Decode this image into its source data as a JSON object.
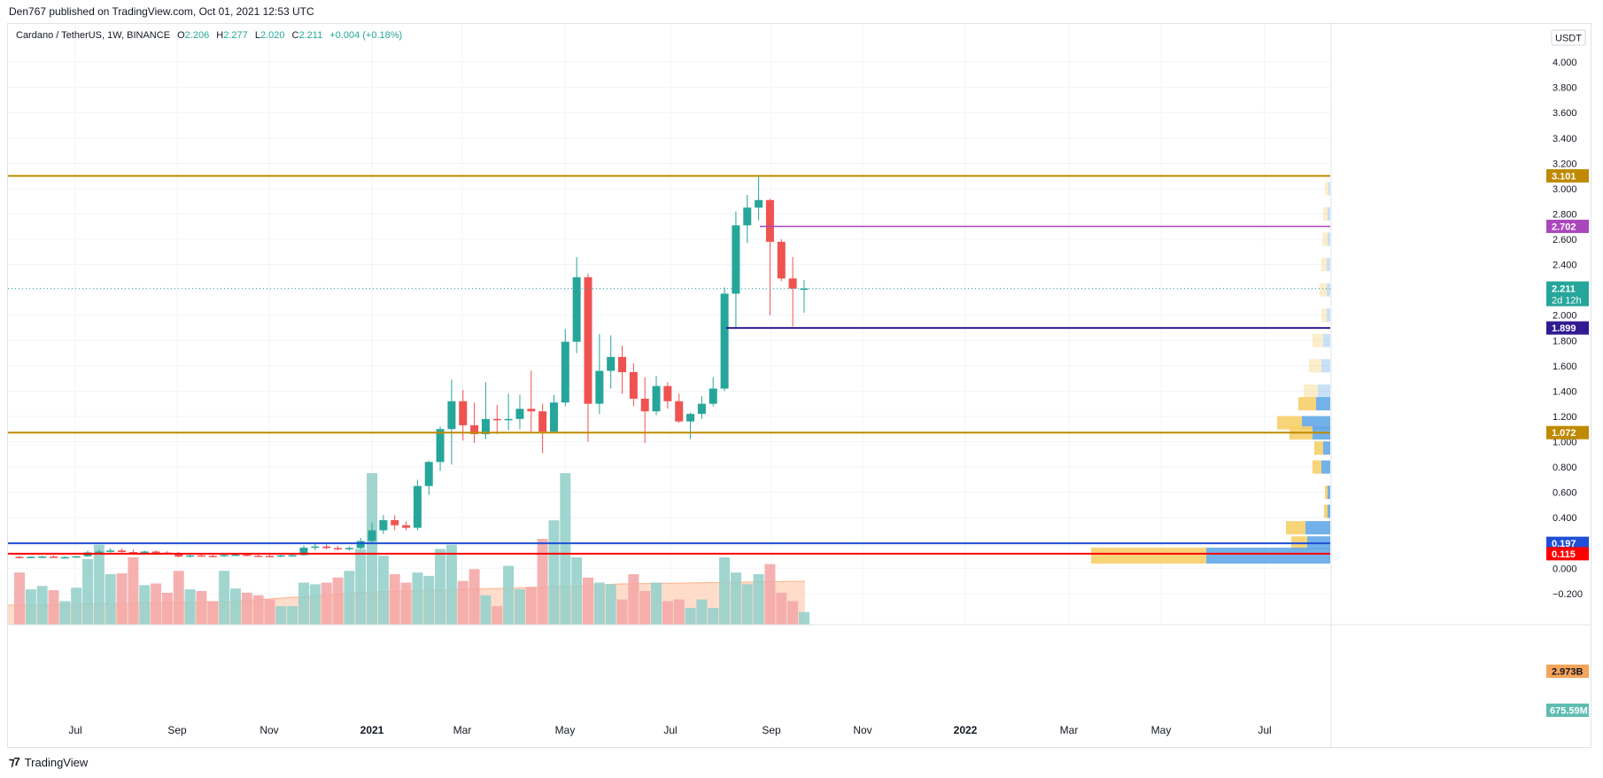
{
  "header": {
    "publisher_text": "Den767 published on TradingView.com, Oct 01, 2021 12:53 UTC"
  },
  "legend": {
    "symbol": "Cardano / TetherUS, 1W, BINANCE",
    "o_label": "O",
    "o_value": "2.206",
    "h_label": "H",
    "h_value": "2.277",
    "l_label": "L",
    "l_value": "2.020",
    "c_label": "C",
    "c_value": "2.211",
    "change": "+0.004 (+0.18%)"
  },
  "axis": {
    "currency_button": "USDT",
    "price_ticks": [
      "4.000",
      "3.800",
      "3.600",
      "3.400",
      "3.200",
      "3.000",
      "2.800",
      "2.600",
      "2.400",
      "2.200",
      "2.000",
      "1.800",
      "1.600",
      "1.400",
      "1.200",
      "1.000",
      "0.800",
      "0.600",
      "0.400",
      "0.200",
      "0.000",
      "−0.200"
    ],
    "time_labels": [
      {
        "label": "Jul",
        "bold": false
      },
      {
        "label": "Sep",
        "bold": false
      },
      {
        "label": "Nov",
        "bold": false
      },
      {
        "label": "2021",
        "bold": true
      },
      {
        "label": "Mar",
        "bold": false
      },
      {
        "label": "May",
        "bold": false
      },
      {
        "label": "Jul",
        "bold": false
      },
      {
        "label": "Sep",
        "bold": false
      },
      {
        "label": "Nov",
        "bold": false
      },
      {
        "label": "2022",
        "bold": true
      },
      {
        "label": "Mar",
        "bold": false
      },
      {
        "label": "May",
        "bold": false
      },
      {
        "label": "Jul",
        "bold": false
      }
    ]
  },
  "price_labels": {
    "res_high": "3.101",
    "res_mid": "2.702",
    "current_price": "2.211",
    "countdown": "2d 12h",
    "support_mid": "1.899",
    "support_low": "1.072",
    "vp_poc": "0.197",
    "vp_low": "0.115",
    "volume_ma": "2.973B",
    "volume_cur": "675.59M"
  },
  "colors": {
    "up": "#26a69a",
    "down": "#ef5350",
    "level_orange": "#bf8a00",
    "level_purple_light": "#ab47bc",
    "level_purple_dark": "#311b92",
    "level_blue": "#1e4fd6",
    "level_red": "#ff0000",
    "vol_up": "#97d0cb",
    "vol_down": "#f4a9a7",
    "vol_ma_fill": "#ffd2b8",
    "vp_yellow": "#f7cf6a",
    "vp_blue": "#64a9e8"
  },
  "chart_data": {
    "type": "candlestick",
    "title": "Cardano / TetherUS, 1W, BINANCE",
    "ylim": [
      -0.35,
      4.2
    ],
    "horizontal_levels": [
      3.101,
      2.702,
      1.899,
      1.072,
      0.197,
      0.115
    ],
    "candles": [
      {
        "x": 0,
        "o": 0.09,
        "h": 0.098,
        "l": 0.08,
        "c": 0.085
      },
      {
        "x": 1,
        "o": 0.085,
        "h": 0.094,
        "l": 0.079,
        "c": 0.09
      },
      {
        "x": 2,
        "o": 0.09,
        "h": 0.1,
        "l": 0.082,
        "c": 0.092
      },
      {
        "x": 3,
        "o": 0.092,
        "h": 0.102,
        "l": 0.085,
        "c": 0.086
      },
      {
        "x": 4,
        "o": 0.086,
        "h": 0.095,
        "l": 0.08,
        "c": 0.088
      },
      {
        "x": 5,
        "o": 0.088,
        "h": 0.097,
        "l": 0.082,
        "c": 0.095
      },
      {
        "x": 6,
        "o": 0.095,
        "h": 0.14,
        "l": 0.09,
        "c": 0.125
      },
      {
        "x": 7,
        "o": 0.125,
        "h": 0.15,
        "l": 0.115,
        "c": 0.132
      },
      {
        "x": 8,
        "o": 0.132,
        "h": 0.158,
        "l": 0.122,
        "c": 0.14
      },
      {
        "x": 9,
        "o": 0.14,
        "h": 0.156,
        "l": 0.12,
        "c": 0.128
      },
      {
        "x": 10,
        "o": 0.128,
        "h": 0.148,
        "l": 0.112,
        "c": 0.122
      },
      {
        "x": 11,
        "o": 0.122,
        "h": 0.14,
        "l": 0.112,
        "c": 0.132
      },
      {
        "x": 12,
        "o": 0.132,
        "h": 0.142,
        "l": 0.118,
        "c": 0.124
      },
      {
        "x": 13,
        "o": 0.124,
        "h": 0.135,
        "l": 0.11,
        "c": 0.118
      },
      {
        "x": 14,
        "o": 0.118,
        "h": 0.128,
        "l": 0.086,
        "c": 0.092
      },
      {
        "x": 15,
        "o": 0.092,
        "h": 0.106,
        "l": 0.086,
        "c": 0.102
      },
      {
        "x": 16,
        "o": 0.102,
        "h": 0.112,
        "l": 0.094,
        "c": 0.098
      },
      {
        "x": 17,
        "o": 0.098,
        "h": 0.108,
        "l": 0.09,
        "c": 0.096
      },
      {
        "x": 18,
        "o": 0.096,
        "h": 0.112,
        "l": 0.09,
        "c": 0.105
      },
      {
        "x": 19,
        "o": 0.105,
        "h": 0.118,
        "l": 0.096,
        "c": 0.108
      },
      {
        "x": 20,
        "o": 0.108,
        "h": 0.116,
        "l": 0.094,
        "c": 0.1
      },
      {
        "x": 21,
        "o": 0.1,
        "h": 0.11,
        "l": 0.09,
        "c": 0.098
      },
      {
        "x": 22,
        "o": 0.098,
        "h": 0.108,
        "l": 0.086,
        "c": 0.094
      },
      {
        "x": 23,
        "o": 0.094,
        "h": 0.108,
        "l": 0.088,
        "c": 0.102
      },
      {
        "x": 24,
        "o": 0.102,
        "h": 0.12,
        "l": 0.094,
        "c": 0.104
      },
      {
        "x": 25,
        "o": 0.104,
        "h": 0.18,
        "l": 0.1,
        "c": 0.162
      },
      {
        "x": 26,
        "o": 0.162,
        "h": 0.195,
        "l": 0.142,
        "c": 0.172
      },
      {
        "x": 27,
        "o": 0.172,
        "h": 0.19,
        "l": 0.148,
        "c": 0.16
      },
      {
        "x": 28,
        "o": 0.16,
        "h": 0.176,
        "l": 0.14,
        "c": 0.152
      },
      {
        "x": 29,
        "o": 0.152,
        "h": 0.172,
        "l": 0.14,
        "c": 0.16
      },
      {
        "x": 30,
        "o": 0.16,
        "h": 0.24,
        "l": 0.15,
        "c": 0.215
      },
      {
        "x": 31,
        "o": 0.215,
        "h": 0.36,
        "l": 0.2,
        "c": 0.3
      },
      {
        "x": 32,
        "o": 0.3,
        "h": 0.42,
        "l": 0.27,
        "c": 0.38
      },
      {
        "x": 33,
        "o": 0.38,
        "h": 0.42,
        "l": 0.3,
        "c": 0.34
      },
      {
        "x": 34,
        "o": 0.34,
        "h": 0.37,
        "l": 0.3,
        "c": 0.32
      },
      {
        "x": 35,
        "o": 0.32,
        "h": 0.7,
        "l": 0.3,
        "c": 0.65
      },
      {
        "x": 36,
        "o": 0.65,
        "h": 0.85,
        "l": 0.58,
        "c": 0.84
      },
      {
        "x": 37,
        "o": 0.84,
        "h": 1.12,
        "l": 0.77,
        "c": 1.1
      },
      {
        "x": 38,
        "o": 1.1,
        "h": 1.49,
        "l": 0.82,
        "c": 1.32
      },
      {
        "x": 39,
        "o": 1.32,
        "h": 1.41,
        "l": 1.01,
        "c": 1.13
      },
      {
        "x": 40,
        "o": 1.13,
        "h": 1.31,
        "l": 0.99,
        "c": 1.06
      },
      {
        "x": 41,
        "o": 1.06,
        "h": 1.47,
        "l": 1.02,
        "c": 1.18
      },
      {
        "x": 42,
        "o": 1.18,
        "h": 1.29,
        "l": 1.06,
        "c": 1.17
      },
      {
        "x": 43,
        "o": 1.17,
        "h": 1.38,
        "l": 1.09,
        "c": 1.18
      },
      {
        "x": 44,
        "o": 1.18,
        "h": 1.37,
        "l": 1.1,
        "c": 1.26
      },
      {
        "x": 45,
        "o": 1.26,
        "h": 1.56,
        "l": 1.08,
        "c": 1.24
      },
      {
        "x": 46,
        "o": 1.24,
        "h": 1.3,
        "l": 0.91,
        "c": 1.08
      },
      {
        "x": 47,
        "o": 1.08,
        "h": 1.37,
        "l": 1.07,
        "c": 1.31
      },
      {
        "x": 48,
        "o": 1.31,
        "h": 1.89,
        "l": 1.28,
        "c": 1.79
      },
      {
        "x": 49,
        "o": 1.79,
        "h": 2.46,
        "l": 1.7,
        "c": 2.3
      },
      {
        "x": 50,
        "o": 2.3,
        "h": 2.33,
        "l": 1.0,
        "c": 1.3
      },
      {
        "x": 51,
        "o": 1.3,
        "h": 1.85,
        "l": 1.22,
        "c": 1.56
      },
      {
        "x": 52,
        "o": 1.56,
        "h": 1.84,
        "l": 1.42,
        "c": 1.67
      },
      {
        "x": 53,
        "o": 1.67,
        "h": 1.76,
        "l": 1.38,
        "c": 1.55
      },
      {
        "x": 54,
        "o": 1.55,
        "h": 1.62,
        "l": 1.28,
        "c": 1.34
      },
      {
        "x": 55,
        "o": 1.34,
        "h": 1.51,
        "l": 0.99,
        "c": 1.24
      },
      {
        "x": 56,
        "o": 1.24,
        "h": 1.52,
        "l": 1.21,
        "c": 1.44
      },
      {
        "x": 57,
        "o": 1.44,
        "h": 1.47,
        "l": 1.26,
        "c": 1.32
      },
      {
        "x": 58,
        "o": 1.32,
        "h": 1.38,
        "l": 1.15,
        "c": 1.16
      },
      {
        "x": 59,
        "o": 1.16,
        "h": 1.23,
        "l": 1.02,
        "c": 1.22
      },
      {
        "x": 60,
        "o": 1.22,
        "h": 1.36,
        "l": 1.18,
        "c": 1.3
      },
      {
        "x": 61,
        "o": 1.3,
        "h": 1.51,
        "l": 1.28,
        "c": 1.42
      },
      {
        "x": 62,
        "o": 1.42,
        "h": 2.22,
        "l": 1.4,
        "c": 2.17
      },
      {
        "x": 63,
        "o": 2.17,
        "h": 2.82,
        "l": 1.89,
        "c": 2.71
      },
      {
        "x": 64,
        "o": 2.71,
        "h": 2.95,
        "l": 2.57,
        "c": 2.85
      },
      {
        "x": 65,
        "o": 2.85,
        "h": 3.101,
        "l": 2.75,
        "c": 2.91
      },
      {
        "x": 66,
        "o": 2.91,
        "h": 2.92,
        "l": 2.0,
        "c": 2.58
      },
      {
        "x": 67,
        "o": 2.58,
        "h": 2.6,
        "l": 2.27,
        "c": 2.29
      },
      {
        "x": 68,
        "o": 2.29,
        "h": 2.46,
        "l": 1.91,
        "c": 2.21
      },
      {
        "x": 69,
        "o": 2.206,
        "h": 2.277,
        "l": 2.02,
        "c": 2.211
      }
    ],
    "volumes": [
      0.62,
      0.42,
      0.46,
      0.41,
      0.28,
      0.44,
      0.78,
      0.95,
      0.6,
      0.61,
      0.8,
      0.47,
      0.49,
      0.38,
      0.64,
      0.42,
      0.4,
      0.28,
      0.64,
      0.43,
      0.38,
      0.35,
      0.3,
      0.22,
      0.22,
      0.5,
      0.48,
      0.5,
      0.56,
      0.64,
      0.9,
      1.8,
      0.82,
      0.6,
      0.5,
      0.62,
      0.58,
      0.9,
      0.95,
      0.52,
      0.66,
      0.35,
      0.22,
      0.7,
      0.42,
      0.45,
      1.02,
      1.24,
      1.8,
      0.8,
      0.56,
      0.5,
      0.48,
      0.3,
      0.6,
      0.4,
      0.5,
      0.28,
      0.3,
      0.2,
      0.3,
      0.2,
      0.8,
      0.62,
      0.48,
      0.6,
      0.72,
      0.38,
      0.28,
      0.15
    ],
    "volume_ma_level": 2.973,
    "volume_profile": [
      {
        "price": 3.0,
        "yellow": 4,
        "blue": 2
      },
      {
        "price": 2.8,
        "yellow": 5,
        "blue": 3
      },
      {
        "price": 2.6,
        "yellow": 6,
        "blue": 3
      },
      {
        "price": 2.4,
        "yellow": 6,
        "blue": 4
      },
      {
        "price": 2.2,
        "yellow": 8,
        "blue": 4
      },
      {
        "price": 2.0,
        "yellow": 6,
        "blue": 4
      },
      {
        "price": 1.8,
        "yellow": 12,
        "blue": 8
      },
      {
        "price": 1.6,
        "yellow": 14,
        "blue": 10
      },
      {
        "price": 1.4,
        "yellow": 16,
        "blue": 14
      },
      {
        "price": 1.3,
        "yellow": 20,
        "blue": 16
      },
      {
        "price": 1.15,
        "yellow": 28,
        "blue": 32
      },
      {
        "price": 1.07,
        "yellow": 26,
        "blue": 20
      },
      {
        "price": 0.95,
        "yellow": 10,
        "blue": 8
      },
      {
        "price": 0.8,
        "yellow": 10,
        "blue": 10
      },
      {
        "price": 0.6,
        "yellow": 3,
        "blue": 3
      },
      {
        "price": 0.45,
        "yellow": 4,
        "blue": 3
      },
      {
        "price": 0.32,
        "yellow": 22,
        "blue": 28
      },
      {
        "price": 0.2,
        "yellow": 18,
        "blue": 26
      },
      {
        "price": 0.1,
        "yellow": 130,
        "blue": 140
      }
    ]
  }
}
